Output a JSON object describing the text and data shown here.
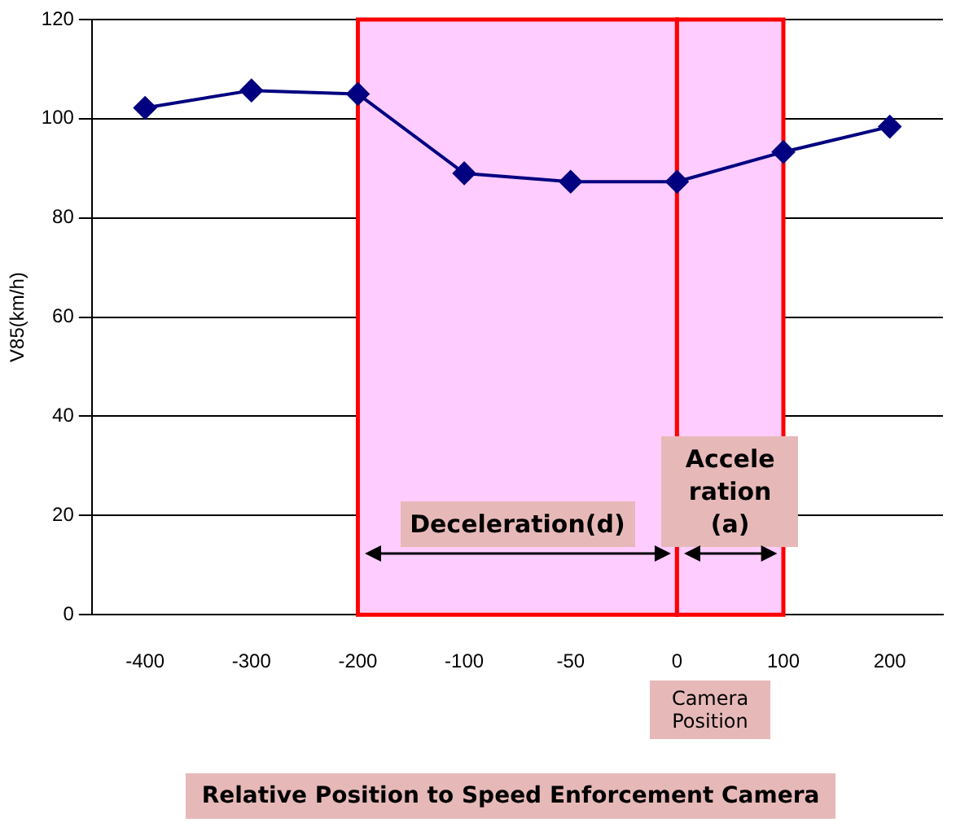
{
  "chart_data": {
    "type": "line",
    "xlabel": "Relative Position to Speed Enforcement Camera",
    "ylabel": "V85(km/h)",
    "categories": [
      "-400",
      "-300",
      "-200",
      "-100",
      "-50",
      "0",
      "100",
      "200"
    ],
    "series": [
      {
        "color": "#000080",
        "values": [
          102.2,
          105.7,
          105,
          89,
          87.3,
          87.3,
          93.3,
          98.4
        ]
      }
    ],
    "ylim": [
      0,
      120
    ],
    "yticks": [
      0,
      20,
      40,
      60,
      80,
      100,
      120
    ],
    "grid": "y",
    "legend": false,
    "marker": "diamond",
    "line_style": "solid",
    "bands": [
      {
        "axis": "x",
        "from": "-200",
        "to": "0",
        "label": "Deceleration(d)",
        "color": "#ffccff"
      },
      {
        "axis": "x",
        "from": "0",
        "to": "100",
        "label": "Accele ration (a)",
        "color": "#ffccff"
      }
    ],
    "annotations": [
      "Camera Position"
    ]
  }
}
